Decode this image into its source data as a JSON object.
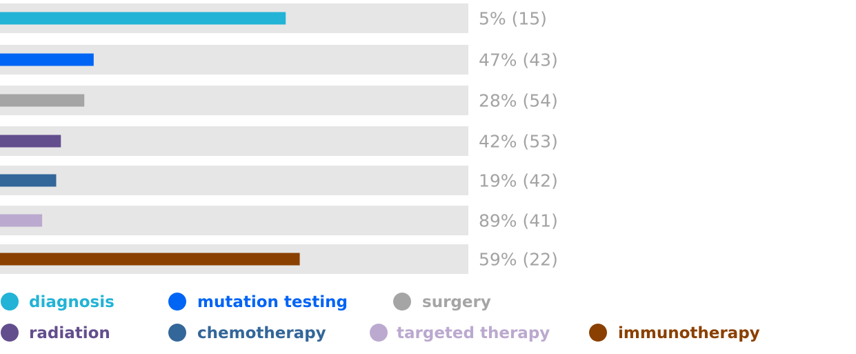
{
  "chart_data": {
    "type": "bar",
    "orientation": "horizontal",
    "title": "",
    "xlabel": "",
    "ylabel": "",
    "xlim": [
      0,
      100
    ],
    "grid": false,
    "legend_placement": "bottom",
    "categories": [
      "diagnosis",
      "mutation testing",
      "surgery",
      "radiation",
      "chemotherapy",
      "targeted therapy",
      "immunotherapy"
    ],
    "values": [
      61,
      20,
      18,
      13,
      12,
      9,
      64
    ],
    "data_labels": [
      "5% (15)",
      "47% (43)",
      "28% (54)",
      "42% (53)",
      "19% (42)",
      "89% (41)",
      "59% (22)"
    ],
    "colors": [
      "#22b3d6",
      "#0064f5",
      "#a5a5a5",
      "#634e8d",
      "#336699",
      "#bba9cf",
      "#8a4000"
    ],
    "track_color": "#e6e6e6"
  }
}
